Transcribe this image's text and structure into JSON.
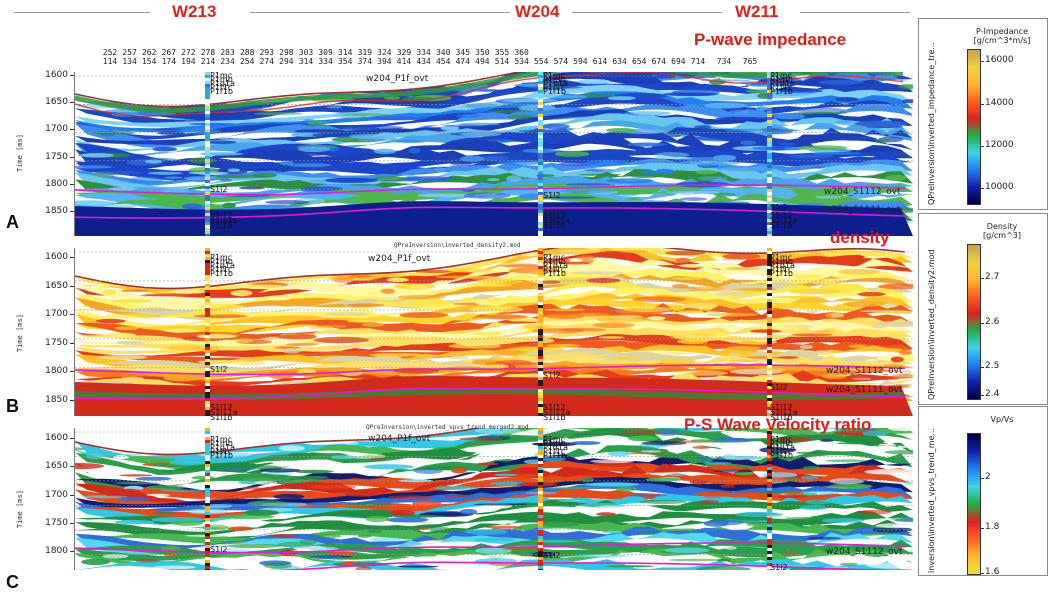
{
  "wells": {
    "w213": "W213",
    "w204": "W204",
    "w211": "W211"
  },
  "trace_labels": {
    "top": [
      "252",
      "257",
      "262",
      "267",
      "272",
      "278",
      "283",
      "288",
      "293",
      "298",
      "303",
      "309",
      "314",
      "319",
      "324",
      "329",
      "334",
      "340",
      "345",
      "350",
      "355",
      "360"
    ],
    "bottom": [
      "114",
      "134",
      "154",
      "174",
      "194",
      "214",
      "234",
      "254",
      "274",
      "294",
      "314",
      "334",
      "354",
      "374",
      "394",
      "414",
      "434",
      "454",
      "474",
      "494",
      "514",
      "534",
      "554",
      "574",
      "594",
      "614",
      "634",
      "654",
      "674",
      "694",
      "714",
      "734",
      "765"
    ]
  },
  "time_axis": {
    "label": "Time [ms]"
  },
  "panels": [
    {
      "letter": "A",
      "title": "P-wave impedance",
      "file_label": "",
      "time_ticks": [
        "1600",
        "1650",
        "1700",
        "1750",
        "1800",
        "1850"
      ],
      "horizons": {
        "upper": "w204_P1f_ovt",
        "mid": "w204_S1112_ovt",
        "lower": "w204_S1111_ovt"
      },
      "legend": {
        "title": "P-Impedance",
        "unit": "[g/cm^3*m/s]",
        "vertical": "QPreInversion\\inverted_impedance_tre...",
        "ticks": [
          "16000",
          "14000",
          "12000",
          "10000"
        ]
      }
    },
    {
      "letter": "B",
      "title": "density",
      "file_label": "QPreInversion\\inverted_density2.mod",
      "time_ticks": [
        "1600",
        "1650",
        "1700",
        "1750",
        "1800",
        "1850"
      ],
      "horizons": {
        "upper": "w204_P1f_ovt",
        "mid": "w204_S1112_ovt",
        "lower": "w204_S1111_ovt"
      },
      "legend": {
        "title": "Density",
        "unit": "[g/cm^3]",
        "vertical": "QPreInversion\\inverted_density2.mod",
        "ticks": [
          "2.7",
          "2.6",
          "2.5",
          "2.4"
        ]
      }
    },
    {
      "letter": "C",
      "title": "P-S Wave Velocity ratio",
      "file_label": "QPreInversion\\inverted_vpvs_trend_merged2.mod",
      "time_ticks": [
        "1600",
        "1650",
        "1700",
        "1750",
        "1800"
      ],
      "horizons": {
        "upper": "w204_P1f_ovt",
        "mid": "w204_S1112_ovt",
        "lower": ""
      },
      "legend": {
        "title": "Vp/Vs",
        "unit": "",
        "vertical": "inversion\\inverted_vpvs_trend_me...",
        "ticks": [
          "2",
          "1.8",
          "1.6"
        ]
      }
    }
  ],
  "well_markers": {
    "top": [
      "P1mc",
      "P1mb",
      "P1q1a",
      "P1f1c",
      "P1f1b"
    ],
    "mid": "S1l2",
    "bottom": [
      "S1l12",
      "S1l11a",
      "S1l1b"
    ]
  }
}
